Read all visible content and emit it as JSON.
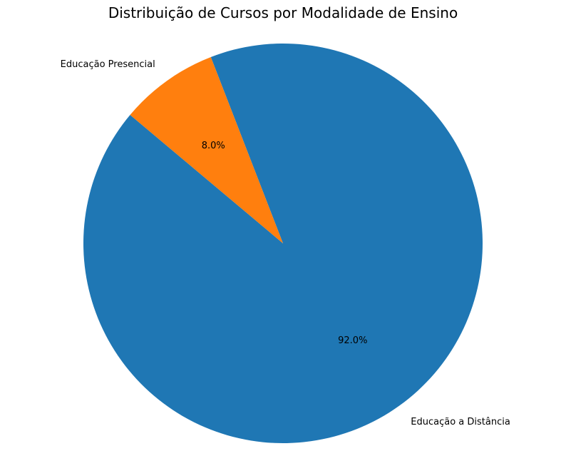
{
  "chart_data": {
    "type": "pie",
    "title": "Distribuição de Cursos por Modalidade de Ensino",
    "slices": [
      {
        "label": "Educação a Distância",
        "value": 92.0,
        "pct_label": "92.0%",
        "color": "#1f77b4"
      },
      {
        "label": "Educação Presencial",
        "value": 8.0,
        "pct_label": "8.0%",
        "color": "#ff7f0e"
      }
    ],
    "start_angle_deg": 140,
    "direction": "counterclockwise",
    "legend": "none"
  }
}
